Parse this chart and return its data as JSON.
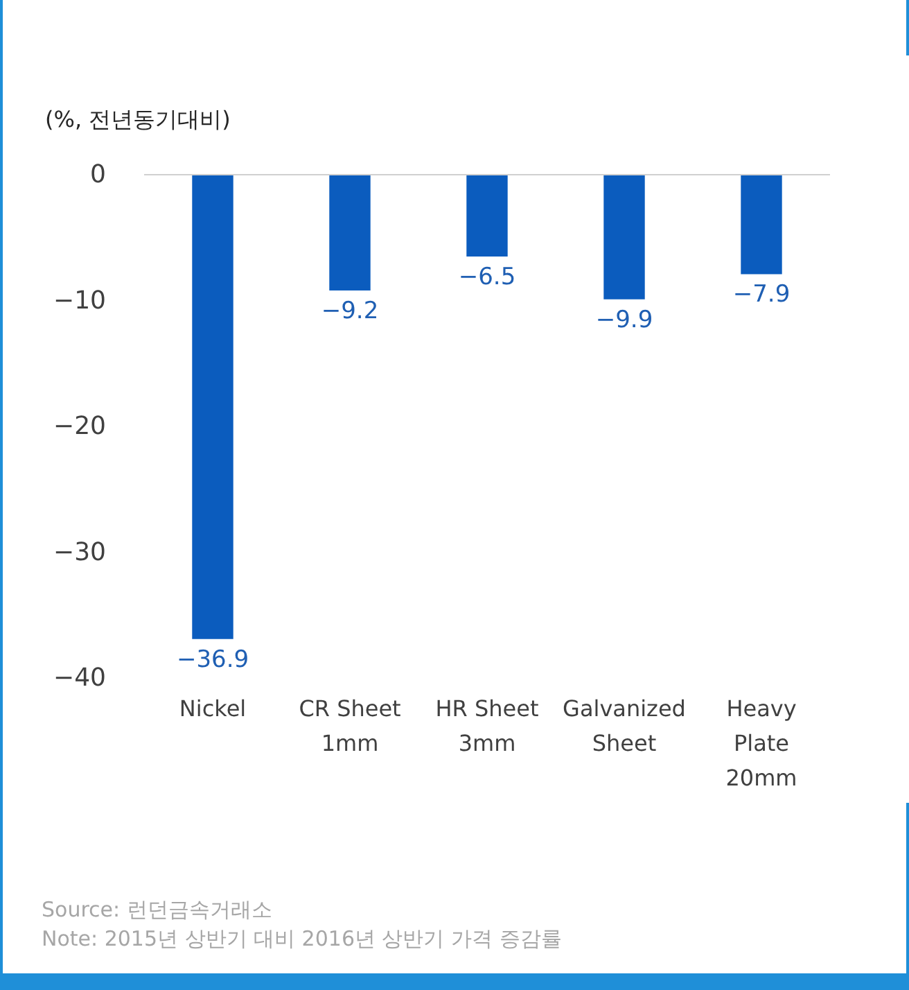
{
  "chart_data": {
    "type": "bar",
    "ylabel": "(%, 전년동기대비)",
    "categories": [
      "Nickel",
      "CR Sheet\n1mm",
      "HR Sheet\n3mm",
      "Galvanized\nSheet",
      "Heavy\nPlate\n20mm"
    ],
    "values": [
      -36.9,
      -9.2,
      -6.5,
      -9.9,
      -7.9
    ],
    "color": "#0b5cbe",
    "ylim": [
      -40,
      0
    ],
    "yticks": [
      -40,
      -30,
      -20,
      -10,
      0
    ],
    "grid": false,
    "data_labels": true,
    "annotations": [
      "Source: 런던금속거래소",
      "Note: 2015년 상반기 대비 2016년 상반기 가격 증감률"
    ]
  }
}
